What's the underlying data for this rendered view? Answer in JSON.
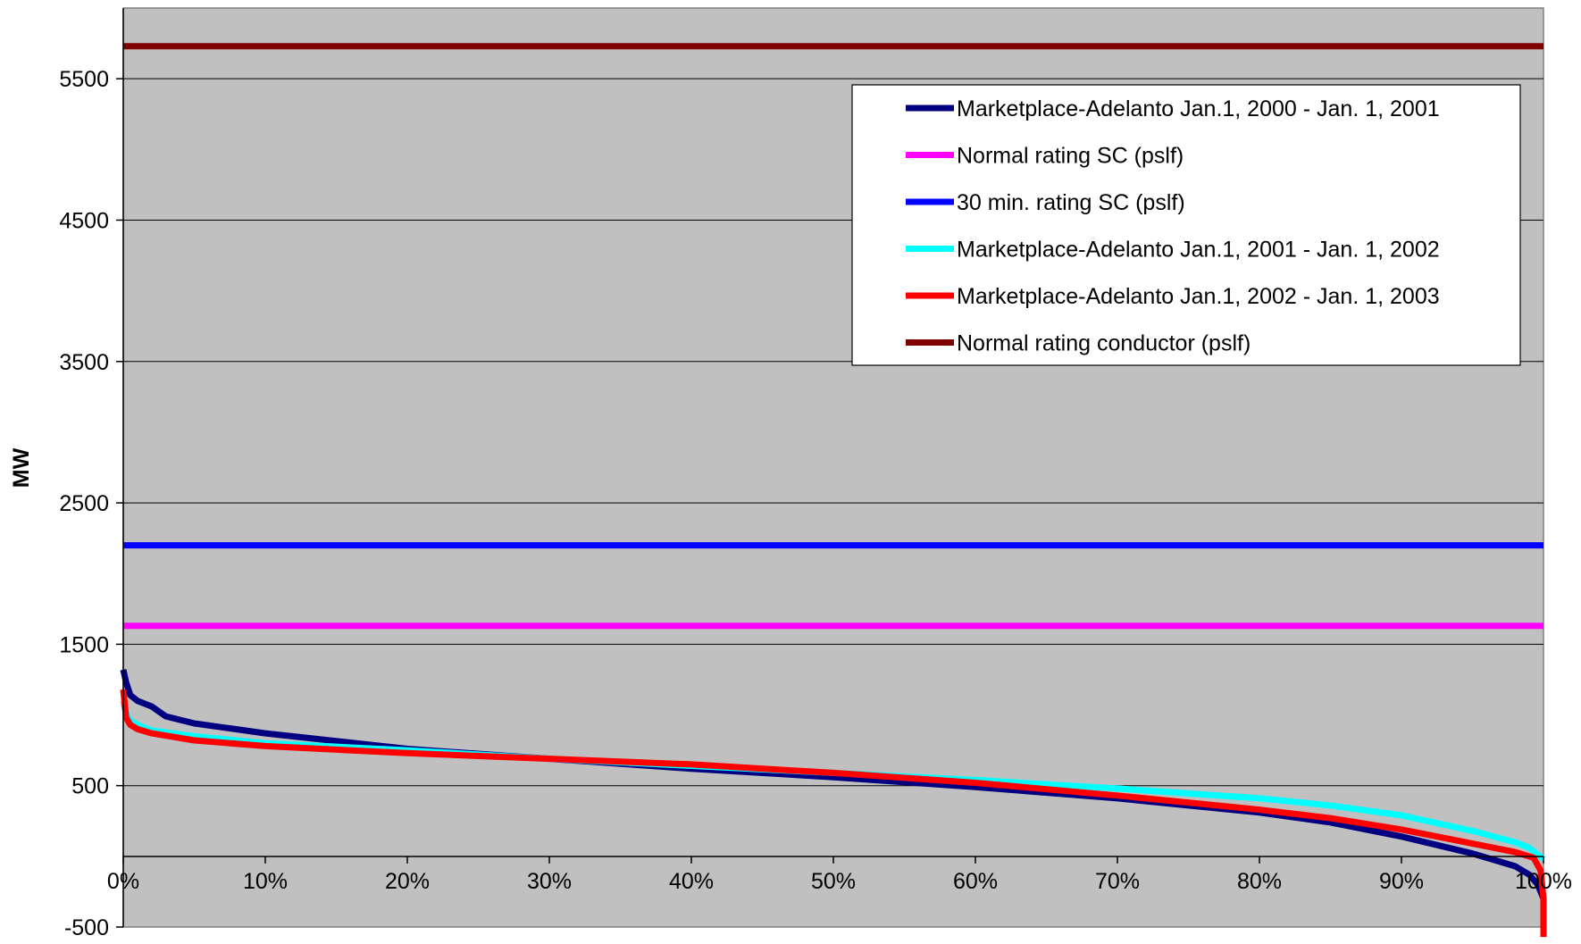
{
  "chart_data": {
    "type": "line",
    "title": "",
    "ylabel": "MW",
    "xlabel": "",
    "xlim": [
      0,
      100
    ],
    "ylim": [
      -500,
      6000
    ],
    "y_gridlines": [
      500,
      1500,
      2500,
      3500,
      4500,
      5500
    ],
    "x_ticks": [
      {
        "value": 0,
        "label": "0%"
      },
      {
        "value": 10,
        "label": "10%"
      },
      {
        "value": 20,
        "label": "20%"
      },
      {
        "value": 30,
        "label": "30%"
      },
      {
        "value": 40,
        "label": "40%"
      },
      {
        "value": 50,
        "label": "50%"
      },
      {
        "value": 60,
        "label": "60%"
      },
      {
        "value": 70,
        "label": "70%"
      },
      {
        "value": 80,
        "label": "80%"
      },
      {
        "value": 90,
        "label": "90%"
      },
      {
        "value": 100,
        "label": "100%"
      }
    ],
    "y_ticks": [
      {
        "value": -500,
        "label": "-500"
      },
      {
        "value": 500,
        "label": "500"
      },
      {
        "value": 1500,
        "label": "1500"
      },
      {
        "value": 2500,
        "label": "2500"
      },
      {
        "value": 3500,
        "label": "3500"
      },
      {
        "value": 4500,
        "label": "4500"
      },
      {
        "value": 5500,
        "label": "5500"
      }
    ],
    "plot_background": "#c0c0c0",
    "grid": true,
    "legend_position": "top-right",
    "series": [
      {
        "name": "Marketplace-Adelanto Jan.1, 2000 - Jan. 1, 2001",
        "color": "#000080",
        "x": [
          0,
          0.2,
          0.5,
          1,
          2,
          3,
          5,
          10,
          20,
          30,
          40,
          50,
          60,
          70,
          80,
          85,
          90,
          95,
          98,
          99,
          99.6,
          100
        ],
        "y": [
          1320,
          1230,
          1140,
          1100,
          1060,
          990,
          940,
          870,
          760,
          690,
          620,
          560,
          490,
          410,
          310,
          240,
          140,
          20,
          -70,
          -130,
          -200,
          -300
        ]
      },
      {
        "name": "Normal rating SC (pslf)",
        "color": "#ff00ff",
        "x": [
          0,
          100
        ],
        "y": [
          1630,
          1630
        ]
      },
      {
        "name": "30 min. rating SC (pslf)",
        "color": "#0000ff",
        "x": [
          0,
          100
        ],
        "y": [
          2200,
          2200
        ]
      },
      {
        "name": "Marketplace-Adelanto Jan.1, 2001 - Jan. 1, 2002",
        "color": "#00ffff",
        "x": [
          0,
          0.2,
          0.5,
          1,
          2,
          5,
          10,
          20,
          30,
          40,
          50,
          60,
          70,
          80,
          85,
          90,
          95,
          98,
          99,
          100
        ],
        "y": [
          1100,
          1010,
          960,
          930,
          890,
          850,
          800,
          750,
          690,
          640,
          590,
          540,
          480,
          410,
          360,
          290,
          180,
          100,
          60,
          -20
        ]
      },
      {
        "name": "Marketplace-Adelanto Jan.1, 2002 - Jan. 1, 2003",
        "color": "#ff0000",
        "x": [
          0,
          0.2,
          0.5,
          1,
          2,
          5,
          10,
          20,
          30,
          40,
          50,
          60,
          70,
          80,
          85,
          90,
          95,
          98,
          99.3,
          99.8,
          100,
          100
        ],
        "y": [
          1180,
          980,
          930,
          900,
          870,
          820,
          780,
          730,
          690,
          650,
          590,
          520,
          430,
          330,
          270,
          190,
          90,
          30,
          -10,
          -100,
          -300,
          -570
        ]
      },
      {
        "name": "Normal rating conductor (pslf)",
        "color": "#800000",
        "x": [
          0,
          100
        ],
        "y": [
          5730,
          5730
        ]
      }
    ]
  }
}
